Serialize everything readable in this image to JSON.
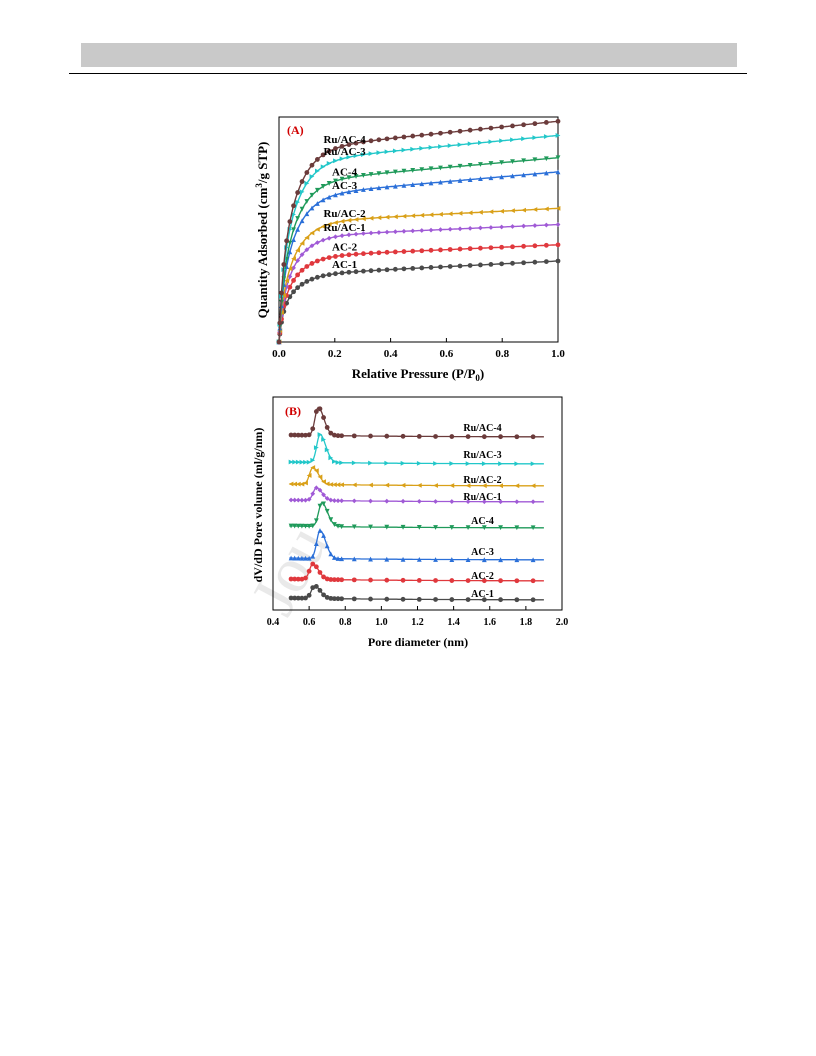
{
  "header": {
    "bar_color": "#c9c9c9"
  },
  "watermark": {
    "text": "Jou"
  },
  "chart_data": [
    {
      "type": "line",
      "panel_label": "(A)",
      "xlabel": "Relative Pressure (P/P0)",
      "ylabel": "Quantity Adsorbed (cm3/g STP)",
      "xlim": [
        0.0,
        1.0
      ],
      "xticks": [
        "0.0",
        "0.2",
        "0.4",
        "0.6",
        "0.8",
        "1.0"
      ],
      "y_ticks_shown": false,
      "legend": "inline labels",
      "series": [
        {
          "name": "AC-1",
          "color": "#4a4a4a",
          "marker": "circle",
          "plateau": 0.33,
          "end": 0.4,
          "knee": 0.13
        },
        {
          "name": "AC-2",
          "color": "#e0383d",
          "marker": "circle",
          "plateau": 0.42,
          "end": 0.48,
          "knee": 0.14
        },
        {
          "name": "Ru/AC-1",
          "color": "#a05ad6",
          "marker": "diamond",
          "plateau": 0.52,
          "end": 0.58,
          "knee": 0.15
        },
        {
          "name": "Ru/AC-2",
          "color": "#d9a018",
          "marker": "triangle-left",
          "plateau": 0.59,
          "end": 0.66,
          "knee": 0.16
        },
        {
          "name": "AC-3",
          "color": "#2a6fd8",
          "marker": "triangle-up",
          "plateau": 0.72,
          "end": 0.84,
          "knee": 0.2
        },
        {
          "name": "AC-4",
          "color": "#1f9a5a",
          "marker": "triangle-down",
          "plateau": 0.79,
          "end": 0.91,
          "knee": 0.22
        },
        {
          "name": "Ru/AC-3",
          "color": "#22c7c9",
          "marker": "triangle-right",
          "plateau": 0.89,
          "end": 1.02,
          "knee": 0.26
        },
        {
          "name": "Ru/AC-4",
          "color": "#6b3b3b",
          "marker": "circle",
          "plateau": 0.95,
          "end": 1.09,
          "knee": 0.28
        }
      ]
    },
    {
      "type": "line",
      "panel_label": "(B)",
      "xlabel": "Pore diameter (nm)",
      "ylabel": "dV/dD Pore volume (ml/g/nm)",
      "xlim": [
        0.4,
        2.0
      ],
      "xticks": [
        "0.4",
        "0.6",
        "0.8",
        "1.0",
        "1.2",
        "1.4",
        "1.6",
        "1.8",
        "2.0"
      ],
      "y_ticks_shown": false,
      "legend": "inline labels",
      "series": [
        {
          "name": "AC-1",
          "color": "#4a4a4a",
          "marker": "circle",
          "peak_x": 0.63,
          "peak_height": 0.45
        },
        {
          "name": "AC-2",
          "color": "#e0383d",
          "marker": "circle",
          "peak_x": 0.62,
          "peak_height": 0.55
        },
        {
          "name": "AC-3",
          "color": "#2a6fd8",
          "marker": "triangle-up",
          "peak_x": 0.66,
          "peak_height": 1.0
        },
        {
          "name": "AC-4",
          "color": "#1f9a5a",
          "marker": "triangle-down",
          "peak_x": 0.67,
          "peak_height": 0.85
        },
        {
          "name": "Ru/AC-1",
          "color": "#a05ad6",
          "marker": "diamond",
          "peak_x": 0.64,
          "peak_height": 0.45
        },
        {
          "name": "Ru/AC-2",
          "color": "#d9a018",
          "marker": "triangle-left",
          "peak_x": 0.62,
          "peak_height": 0.6
        },
        {
          "name": "Ru/AC-3",
          "color": "#22c7c9",
          "marker": "triangle-right",
          "peak_x": 0.66,
          "peak_height": 1.0
        },
        {
          "name": "Ru/AC-4",
          "color": "#6b3b3b",
          "marker": "circle",
          "peak_x": 0.65,
          "peak_height": 1.0
        }
      ]
    }
  ],
  "text": {
    "panel_a_label": "(A)",
    "panel_b_label": "(B)",
    "a_xlabel_main": "Relative Pressure (P/P",
    "a_xlabel_sub": "0",
    "a_xlabel_end": ")",
    "a_ylabel_main": "Quantity Adsorbed (cm",
    "a_ylabel_sup": "3",
    "a_ylabel_end": "/g STP)",
    "b_xlabel": "Pore diameter (nm)",
    "b_ylabel": "dV/dD Pore volume (ml/g/nm)"
  }
}
